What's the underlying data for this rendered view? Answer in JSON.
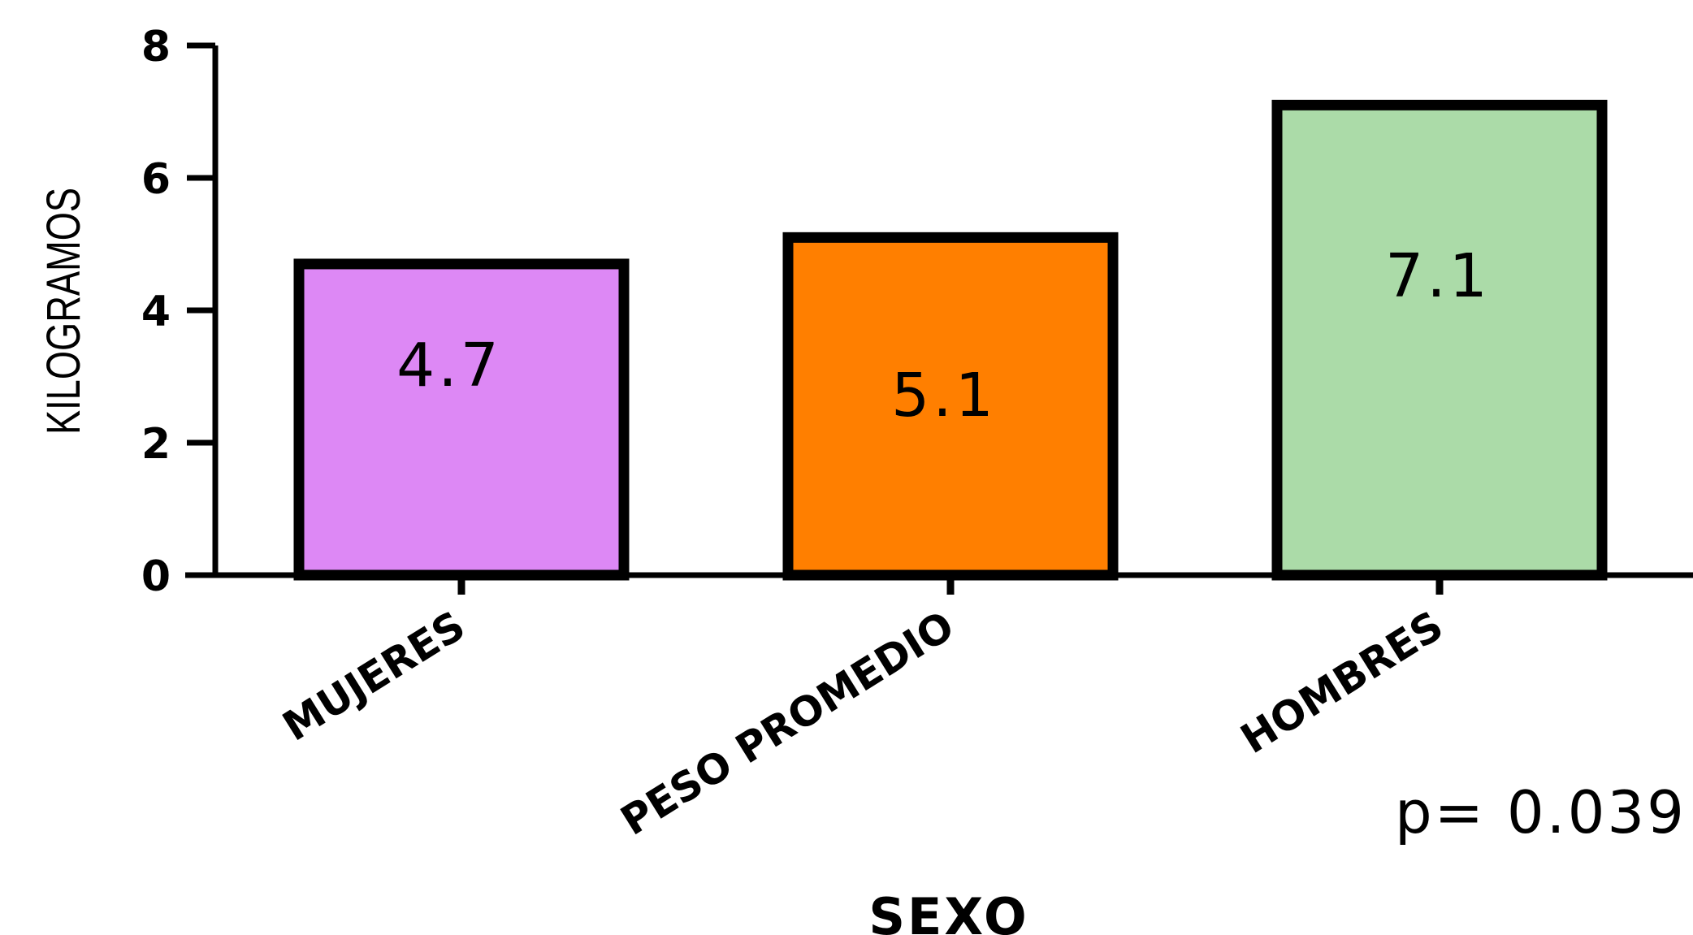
{
  "chart_data": {
    "type": "bar",
    "categories": [
      "MUJERES",
      "PESO PROMEDIO",
      "HOMBRES"
    ],
    "values": [
      4.7,
      5.1,
      7.1
    ],
    "value_labels": [
      "4.7",
      "5.1",
      "7.1"
    ],
    "colors": [
      "#dd88f5",
      "#ff7f00",
      "#abdba8"
    ],
    "bar_outline_color": "#000000",
    "title": "",
    "xlabel": "SEXO",
    "ylabel": "KILOGRAMOS",
    "ylim": [
      0,
      8
    ],
    "yticks": [
      0,
      2,
      4,
      6,
      8
    ],
    "grid": false,
    "legend": "none",
    "annotation": "p= 0.039"
  }
}
